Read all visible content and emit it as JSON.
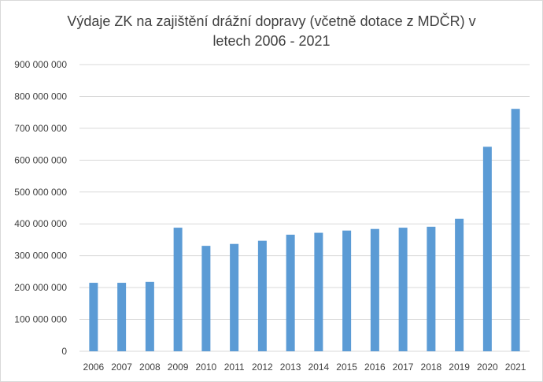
{
  "chart_data": {
    "type": "bar",
    "title": "Výdaje ZK na zajištění drážní dopravy (včetně dotace z MDČR) v letech 2006 - 2021",
    "xlabel": "",
    "ylabel": "",
    "ylim": [
      0,
      900000000
    ],
    "ytick_step": 100000000,
    "ytick_labels": [
      "0",
      "100 000 000",
      "200 000 000",
      "300 000 000",
      "400 000 000",
      "500 000 000",
      "600 000 000",
      "700 000 000",
      "800 000 000",
      "900 000 000"
    ],
    "grid": true,
    "legend": "none",
    "bar_color": "#5b9bd5",
    "categories": [
      "2006",
      "2007",
      "2008",
      "2009",
      "2010",
      "2011",
      "2012",
      "2013",
      "2014",
      "2015",
      "2016",
      "2017",
      "2018",
      "2019",
      "2020",
      "2021"
    ],
    "values": [
      215000000,
      215000000,
      218000000,
      388000000,
      331000000,
      337000000,
      347000000,
      366000000,
      372000000,
      379000000,
      384000000,
      388000000,
      391000000,
      416000000,
      642000000,
      761000000
    ]
  }
}
